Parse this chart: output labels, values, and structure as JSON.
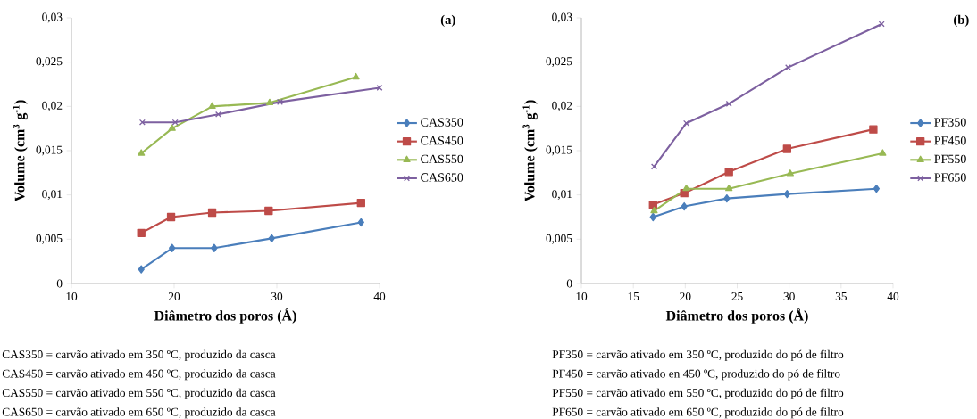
{
  "chart_data": [
    {
      "type": "line",
      "xlabel": "Diâmetro dos poros (Å)",
      "ylabel": "Volume (cm$^{3}$ g$^{-1}$)",
      "xlim": [
        10,
        40
      ],
      "xticks": [
        10,
        20,
        30,
        40
      ],
      "ylim": [
        0,
        0.03
      ],
      "yticks": [
        0,
        {
          "value": 0.005,
          "label": "0,005"
        },
        {
          "value": 0.01,
          "label": "0,01"
        },
        {
          "value": 0.015,
          "label": "0,015"
        },
        {
          "value": 0.02,
          "label": "0,02"
        },
        {
          "value": 0.025,
          "label": "0,025"
        },
        {
          "value": 0.03,
          "label": "0,03"
        }
      ],
      "grid": false,
      "legend": "right",
      "line_style": "solid",
      "annotations": [
        "(a)",
        "CAS350 = carvão ativado em 350 ºC, produzido da casca",
        "CAS450 = carvão ativado em 450 ºC, produzido da casca",
        "CAS550 = carvão ativado em 550 ºC, produzido da casca",
        "CAS650 = carvão ativado em 650 ºC, produzido da casca"
      ],
      "series": [
        {
          "name": "CAS350",
          "color": "#4a7ebb",
          "marker": "diamond",
          "x": [
            16.8,
            19.8,
            23.9,
            29.5,
            38.2
          ],
          "values": [
            0.0016,
            0.004,
            0.004,
            0.0051,
            0.0069
          ]
        },
        {
          "name": "CAS450",
          "color": "#be4b48",
          "marker": "square",
          "x": [
            16.8,
            19.7,
            23.7,
            29.2,
            38.2
          ],
          "values": [
            0.0057,
            0.0075,
            0.008,
            0.0082,
            0.0091
          ]
        },
        {
          "name": "CAS550",
          "color": "#98b954",
          "marker": "triangle",
          "x": [
            16.8,
            19.8,
            23.7,
            29.3,
            37.7
          ],
          "values": [
            0.0147,
            0.0175,
            0.02,
            0.0204,
            0.0233
          ]
        },
        {
          "name": "CAS650",
          "color": "#7d60a0",
          "marker": "cross",
          "x": [
            16.9,
            20.1,
            24.3,
            30.3,
            40
          ],
          "values": [
            0.0182,
            0.0182,
            0.0191,
            0.0205,
            0.0221
          ]
        }
      ]
    },
    {
      "type": "line",
      "xlabel": "Diâmetro dos poros (Å)",
      "ylabel": "Volume (cm$^{3}$ g$^{-1}$)",
      "xlim": [
        10,
        40
      ],
      "xticks": [
        10,
        15,
        20,
        25,
        30,
        35,
        40
      ],
      "ylim": [
        0,
        0.03
      ],
      "yticks": [
        0,
        {
          "value": 0.005,
          "label": "0,005"
        },
        {
          "value": 0.01,
          "label": "0,01"
        },
        {
          "value": 0.015,
          "label": "0,015"
        },
        {
          "value": 0.02,
          "label": "0,02"
        },
        {
          "value": 0.025,
          "label": "0,025"
        },
        {
          "value": 0.03,
          "label": "0,03"
        }
      ],
      "grid": false,
      "legend": "right",
      "line_style": "solid",
      "annotations": [
        "(b)",
        "PF350 = carvão ativado em 350 ºC, produzido do pó de filtro",
        "PF450 = carvão ativado en 450 ºC, produzido do pó de filtro",
        "PF550 = carvão ativado em 550 ºC, produzido do pó de filtro",
        "PF650 = carvão ativado em 650 ºC, produzido do pó de filtro"
      ],
      "series": [
        {
          "name": "PF350",
          "color": "#4a7ebb",
          "marker": "diamond",
          "x": [
            16.9,
            19.9,
            24.0,
            29.8,
            38.4
          ],
          "values": [
            0.0075,
            0.0087,
            0.0096,
            0.0101,
            0.0107
          ]
        },
        {
          "name": "PF450",
          "color": "#be4b48",
          "marker": "square",
          "x": [
            16.9,
            19.9,
            24.2,
            29.8,
            38.1
          ],
          "values": [
            0.0089,
            0.0102,
            0.0126,
            0.0152,
            0.0174
          ]
        },
        {
          "name": "PF550",
          "color": "#98b954",
          "marker": "triangle",
          "x": [
            17.0,
            20.1,
            24.2,
            30.1,
            39.0
          ],
          "values": [
            0.0082,
            0.0107,
            0.0107,
            0.0124,
            0.0147
          ]
        },
        {
          "name": "PF650",
          "color": "#7d60a0",
          "marker": "cross",
          "x": [
            17.0,
            20.1,
            24.2,
            29.9,
            38.9
          ],
          "values": [
            0.0132,
            0.0181,
            0.0203,
            0.0244,
            0.0293
          ]
        }
      ]
    }
  ]
}
